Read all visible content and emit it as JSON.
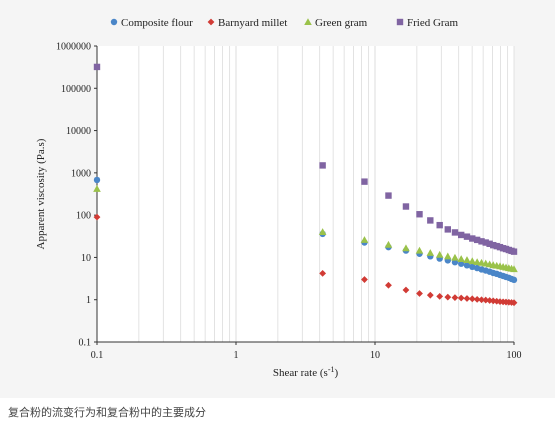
{
  "caption": "复合粉的流变行为和复合粉中的主要成分",
  "chart_data": {
    "type": "scatter",
    "xlabel": "Shear rate (s",
    "xlabel_sup": "-1",
    "xlabel_end": ")",
    "ylabel": "Apparent viscosity (Pa.s)",
    "xscale": "log",
    "yscale": "log",
    "xlim": [
      0.1,
      100
    ],
    "ylim": [
      0.1,
      1000000
    ],
    "x_ticks": [
      "0.1",
      "1",
      "10",
      "100"
    ],
    "y_ticks": [
      "0.1",
      "1",
      "10",
      "100",
      "1000",
      "10000",
      "100000",
      "1000000"
    ],
    "grid": "vertical minor lines",
    "legend_position": "top",
    "series": [
      {
        "name": "Composite flour",
        "marker": "circle",
        "color": "#4a86c8",
        "x": [
          0.1,
          4.2,
          8.4,
          12.5,
          16.7,
          20.9,
          25,
          29.2,
          33.4,
          37.6,
          41.7,
          45.9,
          50.1,
          54.3,
          58.4,
          62.6,
          66.8,
          70.9,
          75.1,
          79.3,
          83.5,
          87.6,
          91.8,
          96,
          100
        ],
        "y": [
          680,
          36,
          22.5,
          17.5,
          14.5,
          12.2,
          10.6,
          9.4,
          8.5,
          7.7,
          7.1,
          6.5,
          6.0,
          5.6,
          5.2,
          4.9,
          4.6,
          4.3,
          4.1,
          3.85,
          3.65,
          3.45,
          3.3,
          3.1,
          2.95
        ]
      },
      {
        "name": "Barnyard millet",
        "marker": "diamond",
        "color": "#d13b35",
        "x": [
          0.1,
          4.2,
          8.4,
          12.5,
          16.7,
          20.9,
          25,
          29.2,
          33.4,
          37.6,
          41.7,
          45.9,
          50.1,
          54.3,
          58.4,
          62.6,
          66.8,
          70.9,
          75.1,
          79.3,
          83.5,
          87.6,
          91.8,
          96,
          100
        ],
        "y": [
          90,
          4.2,
          3.0,
          2.2,
          1.7,
          1.4,
          1.28,
          1.2,
          1.15,
          1.12,
          1.1,
          1.07,
          1.05,
          1.02,
          1.0,
          0.98,
          0.96,
          0.94,
          0.92,
          0.9,
          0.89,
          0.88,
          0.87,
          0.86,
          0.85
        ]
      },
      {
        "name": "Green gram",
        "marker": "triangle",
        "color": "#9ac24a",
        "x": [
          0.1,
          4.2,
          8.4,
          12.5,
          16.7,
          20.9,
          25,
          29.2,
          33.4,
          37.6,
          41.7,
          45.9,
          50.1,
          54.3,
          58.4,
          62.6,
          66.8,
          70.9,
          75.1,
          79.3,
          83.5,
          87.6,
          91.8,
          96,
          100
        ],
        "y": [
          420,
          40,
          26,
          20,
          16.5,
          14.5,
          12.8,
          11.6,
          10.6,
          9.9,
          9.2,
          8.7,
          8.2,
          7.8,
          7.5,
          7.2,
          6.9,
          6.6,
          6.4,
          6.2,
          6.0,
          5.8,
          5.6,
          5.45,
          5.3
        ]
      },
      {
        "name": "Fried Gram",
        "marker": "square",
        "color": "#8064a2",
        "x": [
          0.1,
          4.2,
          8.4,
          12.5,
          16.7,
          20.9,
          25,
          29.2,
          33.4,
          37.6,
          41.7,
          45.9,
          50.1,
          54.3,
          58.4,
          62.6,
          66.8,
          70.9,
          75.1,
          79.3,
          83.5,
          87.6,
          91.8,
          96,
          100
        ],
        "y": [
          320000,
          1500,
          620,
          290,
          160,
          105,
          75,
          58,
          46,
          39,
          34,
          31,
          28,
          26,
          24,
          22.5,
          21,
          19.5,
          18.5,
          17.5,
          16.5,
          15.8,
          15,
          14.3,
          13.7
        ]
      }
    ]
  }
}
